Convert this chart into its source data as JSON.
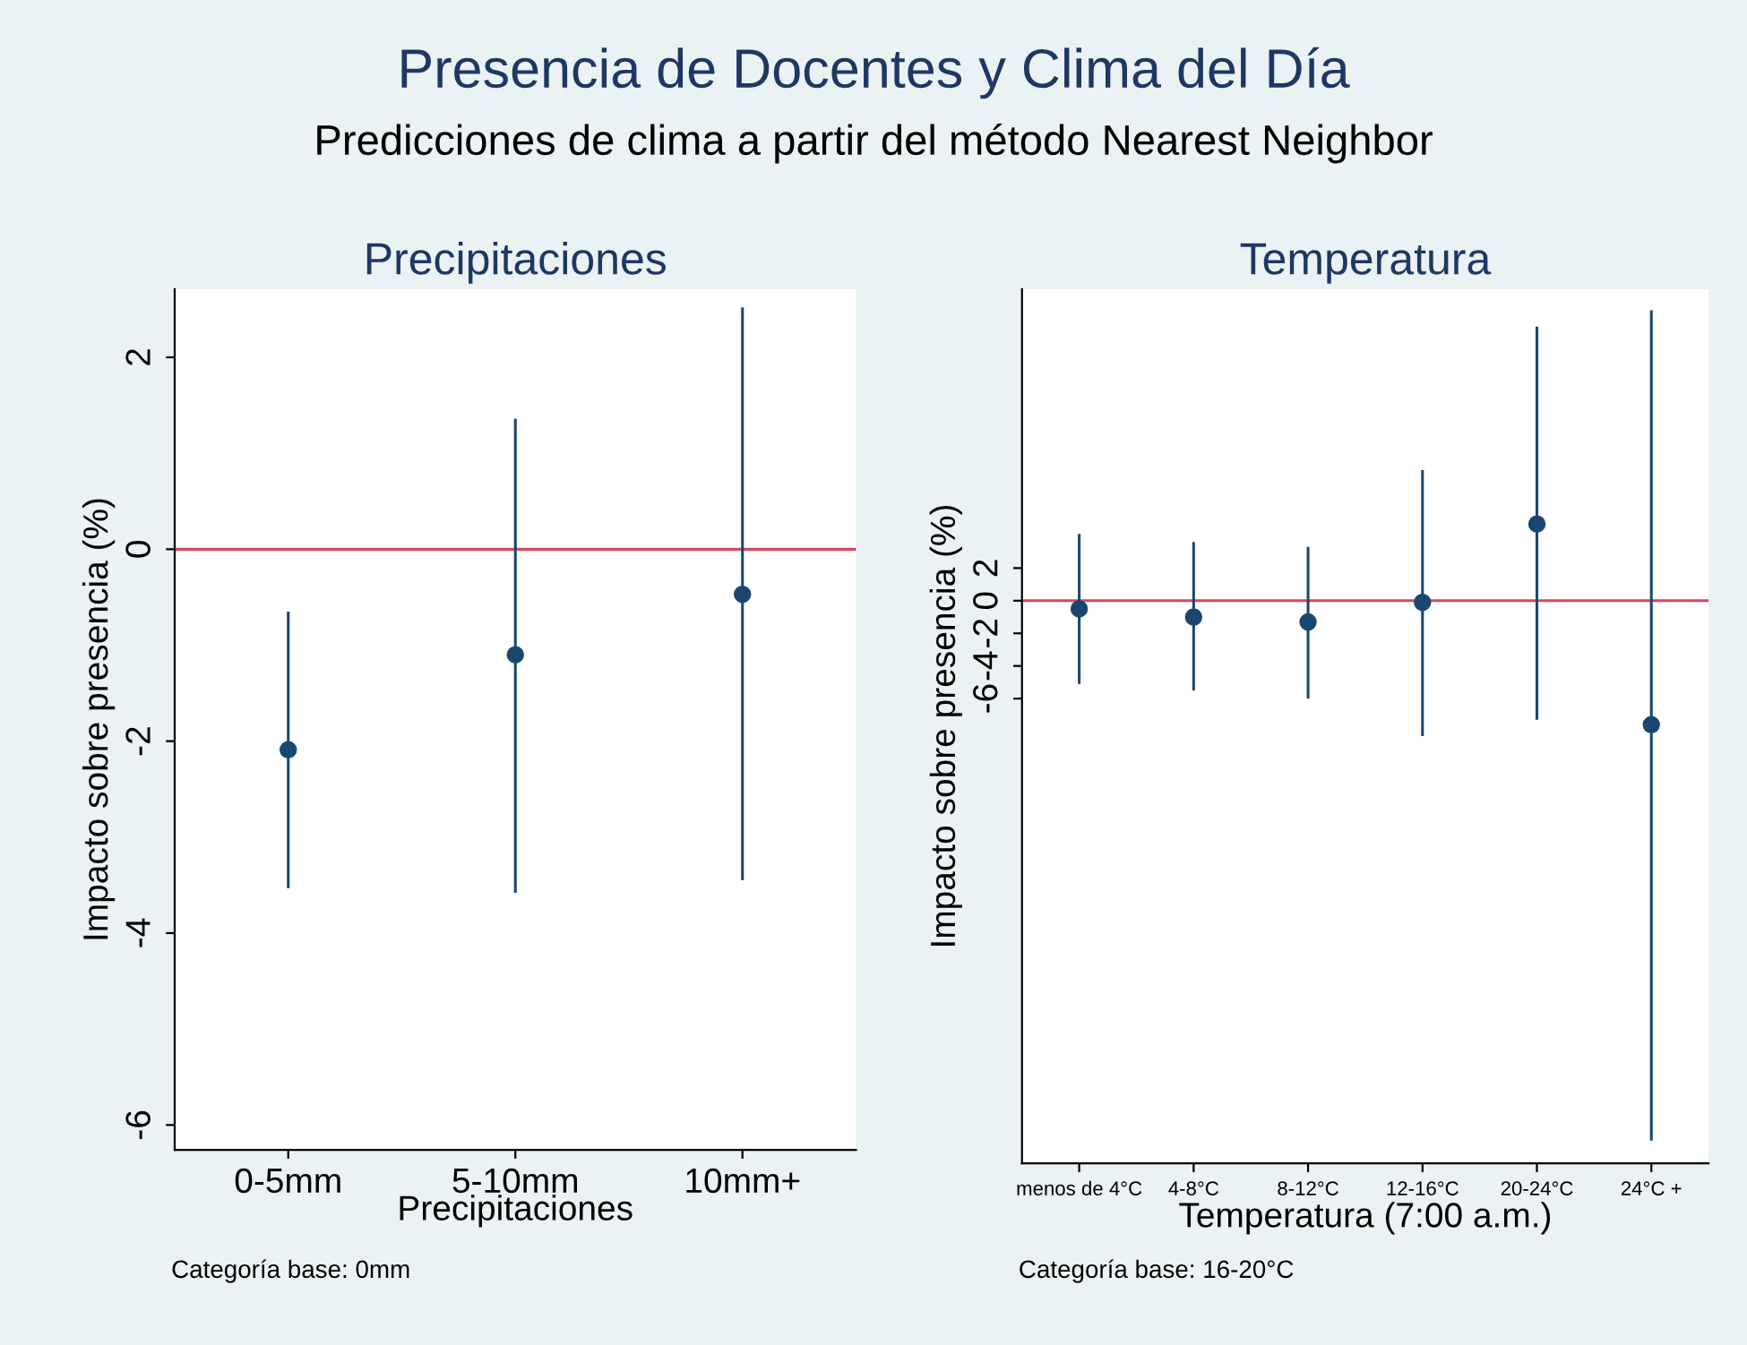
{
  "chart_data": [
    {
      "type": "scatter",
      "title": "Precipitaciones",
      "xlabel": "Precipitaciones",
      "ylabel": "Impacto sobre presencia (%)",
      "annotations": [
        "Presencia de Docentes y Clima del Día",
        "Predicciones de clima a partir del método Nearest Neighbor",
        "Categoría base: 0mm"
      ],
      "categories": [
        "0-5mm",
        "5-10mm",
        "10mm+"
      ],
      "series": [
        {
          "color": "#1a476f",
          "values": [
            -2.09,
            -1.1,
            -0.47
          ],
          "errors": [
            [
              -3.53,
              -0.65
            ],
            [
              -3.58,
              1.36
            ],
            [
              -3.45,
              2.52
            ]
          ]
        }
      ],
      "ylim": [
        -6.26,
        2.71
      ],
      "yticks": [
        -6,
        -4,
        -2,
        0,
        2
      ],
      "ref_lines": [
        {
          "axis": "y",
          "value": 0,
          "color": "#d5475e"
        }
      ],
      "marker": "circle",
      "grid": false,
      "legend": false
    },
    {
      "type": "scatter",
      "title": "Temperatura",
      "xlabel": "Temperatura (7:00 a.m.)",
      "ylabel": "Impacto sobre presencia (%)",
      "annotations": [
        "Categoría base: 16-20°C"
      ],
      "categories": [
        "menos de 4°C",
        "4-8°C",
        "8-12°C",
        "12-16°C",
        "20-24°C",
        "24°C +"
      ],
      "series": [
        {
          "color": "#1a476f",
          "values": [
            -0.5,
            -1.0,
            -1.3,
            -0.1,
            4.7,
            -7.6
          ],
          "errors": [
            [
              -5.1,
              4.1
            ],
            [
              -5.5,
              3.6
            ],
            [
              -6.0,
              3.3
            ],
            [
              -8.3,
              8.0
            ],
            [
              -7.3,
              16.8
            ],
            [
              -33.1,
              17.8
            ]
          ]
        }
      ],
      "ylim": [
        -34.5,
        19.1
      ],
      "yticks": [
        -6,
        -4,
        -2,
        0,
        2
      ],
      "ref_lines": [
        {
          "axis": "y",
          "value": 0,
          "color": "#d5475e"
        }
      ],
      "marker": "circle",
      "grid": false,
      "legend": false
    }
  ]
}
